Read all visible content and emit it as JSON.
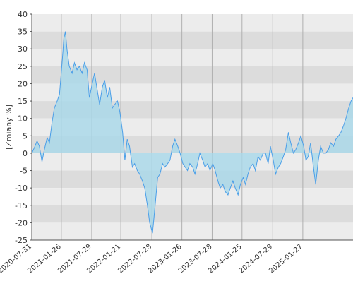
{
  "chart_data": {
    "type": "area",
    "title": "",
    "xlabel": "",
    "ylabel": "[Zmiany %]",
    "ylim": [
      -25,
      40
    ],
    "yticks": [
      -25,
      -20,
      -15,
      -10,
      -5,
      0,
      5,
      10,
      15,
      20,
      25,
      30,
      35,
      40
    ],
    "xlim": [
      "2020-07-31",
      "2025-11-27"
    ],
    "xticks": [
      "2020-07-31",
      "2021-01-26",
      "2021-07-29",
      "2022-01-21",
      "2022-07-28",
      "2023-01-26",
      "2023-07-28",
      "2024-01-25",
      "2024-07-29",
      "2025-01-27"
    ],
    "grid": true,
    "colors": {
      "line": "#4a9ee8",
      "fill": "#a8d8ea",
      "band_dark": "#dcdcdc",
      "band_light": "#ececec",
      "vgrid": "#b0b0b0",
      "axis": "#555555"
    },
    "series": [
      {
        "x": [
          "2020-07-31",
          "2020-08-15",
          "2020-09-01",
          "2020-09-15",
          "2020-10-01",
          "2020-10-15",
          "2020-11-01",
          "2020-11-15",
          "2020-12-01",
          "2020-12-15",
          "2021-01-01",
          "2021-01-15",
          "2021-02-01",
          "2021-02-10",
          "2021-02-20",
          "2021-03-01",
          "2021-03-15",
          "2021-04-01",
          "2021-04-15",
          "2021-05-01",
          "2021-05-15",
          "2021-06-01",
          "2021-06-15",
          "2021-07-01",
          "2021-07-15",
          "2021-08-01",
          "2021-08-15",
          "2021-09-01",
          "2021-09-15",
          "2021-10-01",
          "2021-10-15",
          "2021-11-01",
          "2021-11-15",
          "2021-12-01",
          "2021-12-15",
          "2022-01-01",
          "2022-01-15",
          "2022-02-01",
          "2022-02-15",
          "2022-03-01",
          "2022-03-15",
          "2022-04-01",
          "2022-04-15",
          "2022-05-01",
          "2022-05-15",
          "2022-06-01",
          "2022-06-15",
          "2022-07-01",
          "2022-07-15",
          "2022-08-01",
          "2022-08-15",
          "2022-09-01",
          "2022-09-15",
          "2022-10-01",
          "2022-10-15",
          "2022-11-01",
          "2022-11-15",
          "2022-12-01",
          "2022-12-15",
          "2023-01-01",
          "2023-01-15",
          "2023-02-01",
          "2023-02-15",
          "2023-03-01",
          "2023-03-15",
          "2023-04-01",
          "2023-04-15",
          "2023-05-01",
          "2023-05-15",
          "2023-06-01",
          "2023-06-15",
          "2023-07-01",
          "2023-07-15",
          "2023-08-01",
          "2023-08-15",
          "2023-09-01",
          "2023-09-15",
          "2023-10-01",
          "2023-10-15",
          "2023-11-01",
          "2023-11-15",
          "2023-12-01",
          "2023-12-15",
          "2024-01-01",
          "2024-01-15",
          "2024-02-01",
          "2024-02-15",
          "2024-03-01",
          "2024-03-15",
          "2024-04-01",
          "2024-04-15",
          "2024-05-01",
          "2024-05-15",
          "2024-06-01",
          "2024-06-15",
          "2024-07-01",
          "2024-07-15",
          "2024-08-01",
          "2024-08-15",
          "2024-09-01",
          "2024-09-15",
          "2024-10-01",
          "2024-10-15",
          "2024-11-01",
          "2024-11-15",
          "2024-12-01",
          "2024-12-15",
          "2025-01-01",
          "2025-01-15",
          "2025-02-01",
          "2025-02-15",
          "2025-03-01",
          "2025-03-15",
          "2025-04-01",
          "2025-04-15",
          "2025-05-01",
          "2025-05-15",
          "2025-06-01",
          "2025-06-15",
          "2025-07-01",
          "2025-07-15",
          "2025-08-01",
          "2025-08-15",
          "2025-09-01",
          "2025-09-15",
          "2025-10-01",
          "2025-10-15",
          "2025-11-01",
          "2025-11-15",
          "2025-11-27"
        ],
        "values": [
          0,
          1.5,
          3.5,
          2,
          -2.5,
          1,
          4.5,
          3,
          9,
          13,
          15,
          17,
          27,
          33,
          35,
          30,
          25,
          23,
          26,
          24,
          25,
          23,
          26,
          24,
          16,
          20,
          23,
          18,
          14,
          19,
          21,
          16,
          19,
          13,
          14,
          15,
          12,
          6,
          -2,
          4,
          2,
          -4,
          -3,
          -5,
          -6,
          -8,
          -10,
          -15,
          -20,
          -23,
          -16,
          -7,
          -6,
          -3,
          -4,
          -3,
          -2,
          2,
          4,
          2,
          0,
          -3,
          -4,
          -5,
          -3,
          -4,
          -6,
          -3,
          0,
          -2,
          -4,
          -3,
          -5,
          -3,
          -5,
          -8,
          -10,
          -9,
          -11,
          -12,
          -10,
          -8,
          -10,
          -12,
          -9,
          -7,
          -9,
          -6,
          -4,
          -3,
          -5,
          -1,
          -2,
          0,
          0,
          -3,
          2,
          -2,
          -6,
          -4,
          -3,
          -1,
          1,
          6,
          3,
          0,
          1,
          3,
          5,
          2,
          -2,
          -1,
          3,
          -4,
          -9,
          -2,
          2,
          0,
          0,
          1,
          3,
          2,
          4,
          5,
          6,
          8,
          10,
          13,
          15,
          16
        ]
      }
    ]
  }
}
